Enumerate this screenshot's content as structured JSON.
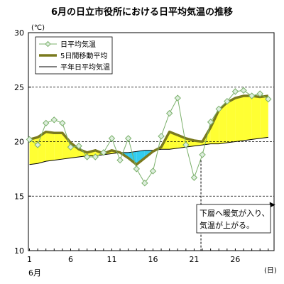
{
  "chart_data": {
    "type": "line",
    "title": "6月の日立市役所における日平均気温の推移",
    "yunit": "(℃)",
    "xunit": "(日)",
    "xmonth": "6月",
    "xlim": [
      1,
      30
    ],
    "ylim": [
      10,
      30
    ],
    "yticks": [
      10,
      15,
      20,
      25,
      30
    ],
    "xticks": [
      1,
      6,
      11,
      16,
      21,
      26
    ],
    "grid_dashed_y": [
      15,
      20,
      25
    ],
    "legend_position": "top-left",
    "series": [
      {
        "name": "日平均気温",
        "x": [
          1,
          2,
          3,
          4,
          5,
          6,
          7,
          8,
          9,
          10,
          11,
          12,
          13,
          14,
          15,
          16,
          17,
          18,
          19,
          20,
          21,
          22,
          23,
          24,
          25,
          26,
          27,
          28,
          29,
          30
        ],
        "values": [
          20.2,
          19.7,
          21.7,
          22.0,
          21.7,
          19.5,
          19.6,
          18.6,
          18.6,
          19.0,
          20.3,
          18.3,
          20.3,
          17.5,
          16.2,
          17.3,
          20.5,
          22.6,
          24.0,
          19.7,
          16.7,
          18.8,
          21.8,
          23.0,
          23.7,
          24.6,
          24.7,
          24.2,
          24.4,
          23.9
        ],
        "color": "#7bb06b",
        "marker_fill": "#ddeedd"
      },
      {
        "name": "5日間移動平均",
        "x": [
          1,
          2,
          3,
          4,
          5,
          6,
          7,
          8,
          9,
          10,
          11,
          12,
          13,
          14,
          15,
          16,
          17,
          18,
          19,
          20,
          21,
          22,
          23,
          24,
          25,
          26,
          27,
          28,
          29,
          30
        ],
        "values": [
          20.2,
          20.4,
          20.9,
          20.8,
          20.8,
          19.9,
          19.3,
          19.0,
          19.2,
          18.9,
          19.2,
          19.0,
          18.5,
          17.9,
          18.5,
          19.1,
          19.5,
          20.9,
          20.6,
          20.3,
          20.1,
          20.0,
          21.3,
          22.9,
          23.6,
          24.0,
          24.2,
          24.2,
          24.1,
          24.2
        ],
        "color": "#7a7a1e"
      },
      {
        "name": "平年日平均気温",
        "x": [
          1,
          2,
          3,
          4,
          5,
          6,
          7,
          8,
          9,
          10,
          11,
          12,
          13,
          14,
          15,
          16,
          17,
          18,
          19,
          20,
          21,
          22,
          23,
          24,
          25,
          26,
          27,
          28,
          29,
          30
        ],
        "values": [
          17.9,
          18.0,
          18.2,
          18.3,
          18.4,
          18.5,
          18.6,
          18.7,
          18.7,
          18.8,
          18.9,
          19.0,
          19.0,
          19.1,
          19.2,
          19.2,
          19.3,
          19.3,
          19.4,
          19.5,
          19.6,
          19.7,
          19.8,
          19.8,
          19.9,
          20.0,
          20.1,
          20.2,
          20.3,
          20.4
        ],
        "color": "#000000"
      }
    ],
    "fill_above_color": "#ffff33",
    "fill_below_color": "#33ccee",
    "annotation": {
      "lines": [
        "下層へ暖気が入り、",
        "気温が上がる。"
      ],
      "from_day": 22,
      "to_day": 30
    }
  }
}
